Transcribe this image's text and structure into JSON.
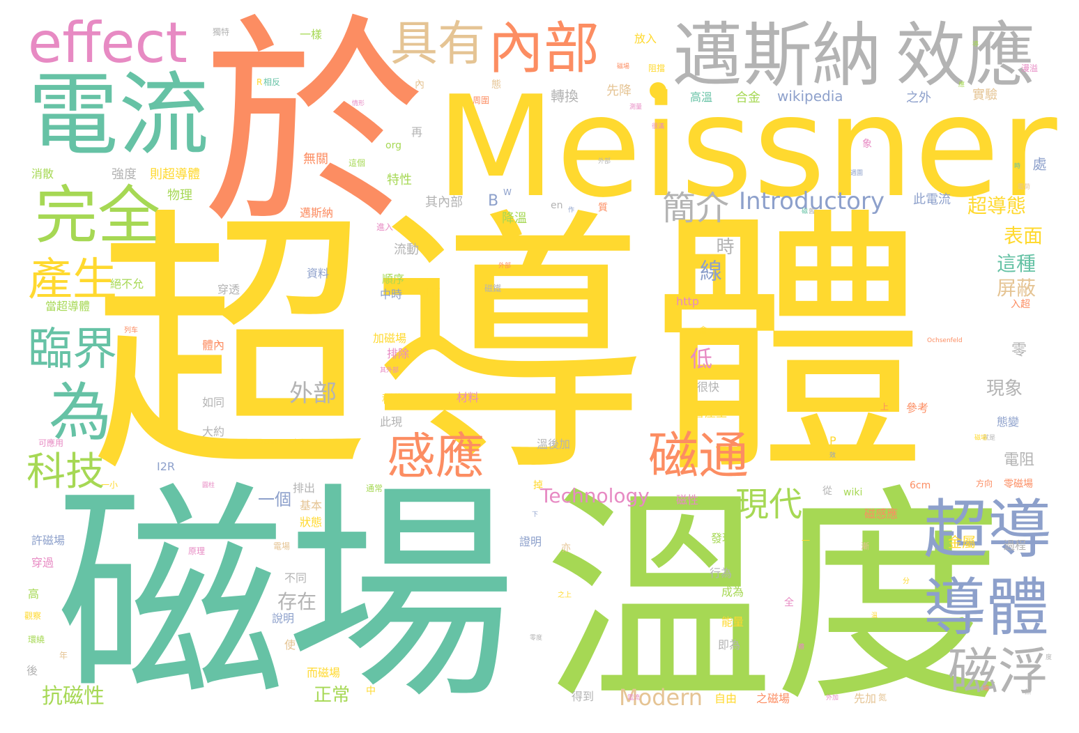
{
  "palette": {
    "yellow": "#ffd92f",
    "teal": "#66c2a5",
    "orange": "#fc8d62",
    "lime": "#a6d854",
    "gray": "#b3b3b3",
    "blue": "#8da0cb",
    "pink": "#e78ac3",
    "tan": "#e5c494"
  },
  "words": {
    "w001": "超導體",
    "w002": "磁場",
    "w003": "溫度",
    "w004": "Meissner",
    "w005": "於",
    "w006": "電流",
    "w007": "邁斯納",
    "w008": "效應",
    "w009": "effect",
    "w010": "具有",
    "w011": "內部",
    "w012": "完全",
    "w013": "產生",
    "w014": "臨界",
    "w015": "為",
    "w016": "科技",
    "w017": "感應",
    "w018": "磁通",
    "w019": "超導",
    "w020": "導體",
    "w021": "磁浮",
    "w022": "現代",
    "w023": "簡介",
    "w024": "Introductory",
    "w025": "Modern",
    "w026": "Technology",
    "w027": "wikipedia",
    "w028": "超導態",
    "w029": "表面",
    "w030": "這種",
    "w031": "屏蔽",
    "w032": "外部",
    "w033": "線",
    "w034": "低",
    "w035": "時",
    "w036": "抗磁性",
    "w037": "正常",
    "w038": "存在",
    "w039": "現象",
    "w040": "電阻",
    "w041": "金屬",
    "w042": "零",
    "w043": "一個",
    "w044": "轉換",
    "w045": "先降",
    "w046": "高溫",
    "w047": "合金",
    "w048": "之外",
    "w049": "實驗",
    "w050": "無關",
    "w051": "特性",
    "w052": "其內部",
    "w053": "降溫",
    "w054": "此電流",
    "w055": "處",
    "w056": "物理",
    "w057": "強度",
    "w058": "則超導體",
    "w059": "消散",
    "w060": "邁斯納",
    "w061": "流動",
    "w062": "資料",
    "w063": "順序",
    "w064": "中時",
    "w065": "可有",
    "w066": "穿透",
    "w067": "絕不允",
    "w068": "當超導體",
    "w069": "加磁場",
    "w070": "排除",
    "w071": "體內",
    "w072": "稱為",
    "w073": "材料",
    "w074": "如同",
    "w075": "大約",
    "w076": "此現",
    "w077": "溫後加",
    "w078": "I2R",
    "w079": "排出",
    "w080": "基本",
    "w081": "狀態",
    "w082": "發現",
    "w083": "會產生",
    "w084": "很快",
    "w085": "參考",
    "w086": "態變",
    "w087": "磁性",
    "w088": "磁感應",
    "w089": "過程",
    "w090": "行為",
    "w091": "成為",
    "w092": "不同",
    "w093": "說明",
    "w094": "能量",
    "w095": "即為",
    "w096": "而磁場",
    "w097": "得到",
    "w098": "自由",
    "w099": "之磁場",
    "w100": "先加",
    "w101": "證明",
    "w102": "一樣",
    "w103": "放入",
    "w104": "獨特",
    "w105": "相反",
    "w106": "周圍",
    "w107": "再",
    "w108": "這個",
    "w109": "org",
    "w110": "en",
    "w111": "質",
    "w112": "進入",
    "w113": "http",
    "w114": "wiki",
    "w115": "6cm",
    "w116": "從",
    "w117": "掉",
    "w118": "通常",
    "w119": "穿過",
    "w120": "高",
    "w121": "觀察",
    "w122": "環繞",
    "w123": "年",
    "w124": "後",
    "w125": "使",
    "w126": "中",
    "w127": "亦",
    "w128": "全",
    "w129": "入超",
    "w130": "零磁場",
    "w131": "方向",
    "w132": "Ochsenfeld",
    "w133": "Demagnetism",
    "w134": "可應用",
    "w135": "許磁場",
    "w136": "一小",
    "w137": "原理",
    "w138": "內",
    "w139": "態",
    "w140": "阻擋",
    "w141": "B",
    "w142": "W",
    "w143": "P",
    "w144": "象",
    "w145": "列车",
    "w146": "氮",
    "w147": "外加",
    "w148": "上",
    "w149": "會",
    "w150": "之上",
    "w151": "分",
    "w152": "漫溢",
    "w153": "其外部",
    "w154": "情形",
    "w155": "測量",
    "w156": "磁場",
    "w157": "外部",
    "w158": "就是",
    "w159": "外部",
    "w160": "圓柱",
    "w161": "磁鐵",
    "w162": "電場",
    "w163": "零度",
    "w164": "下",
    "w165": "R",
    "w166": "週圍",
    "w167": "漸",
    "w168": "一",
    "w169": "作",
    "w170": "磁場",
    "w171": "舊",
    "w172": "很滿",
    "w173": "電流",
    "w174": "電荷",
    "w175": "熱",
    "w176": "時",
    "w177": "導",
    "w178": "場",
    "w179": "體",
    "w180": "溫",
    "w181": "磁",
    "w182": "效",
    "w183": "應",
    "w184": "度"
  }
}
